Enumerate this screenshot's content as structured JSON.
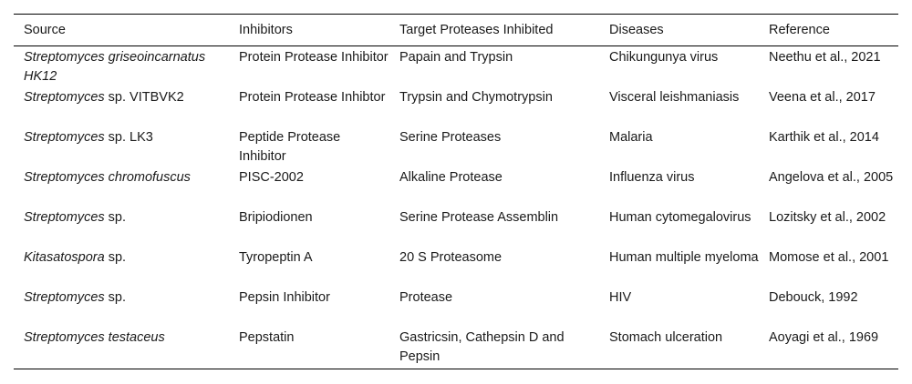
{
  "table": {
    "headers": [
      "Source",
      "Inhibitors",
      "Target Proteases Inhibited",
      "Diseases",
      "Reference"
    ],
    "rows": [
      {
        "source_italic": "Streptomyces griseoincarnatus HK12",
        "source_rest": "",
        "inhibitor": "Protein Protease Inhibitor",
        "target": "Papain and Trypsin",
        "disease": "Chikungunya virus",
        "reference": "Neethu et al., 2021"
      },
      {
        "source_italic": "Streptomyces",
        "source_rest": " sp. VITBVK2",
        "inhibitor": "Protein Protease Inhibtor",
        "target": "Trypsin and Chymotrypsin",
        "disease": "Visceral leishmaniasis",
        "reference": "Veena et al., 2017"
      },
      {
        "source_italic": "Streptomyces",
        "source_rest": " sp. LK3",
        "inhibitor": "Peptide Protease Inhibitor",
        "target": "Serine Proteases",
        "disease": "Malaria",
        "reference": "Karthik et al., 2014"
      },
      {
        "source_italic": "Streptomyces chromofuscus",
        "source_rest": "",
        "inhibitor": "PISC-2002",
        "target": "Alkaline Protease",
        "disease": "Influenza virus",
        "reference": "Angelova et al., 2005"
      },
      {
        "source_italic": "Streptomyces",
        "source_rest": " sp.",
        "inhibitor": "Bripiodionen",
        "target": "Serine Protease Assemblin",
        "disease": "Human cytomegalovirus",
        "reference": "Lozitsky et al., 2002"
      },
      {
        "source_italic": "Kitasatospora",
        "source_rest": " sp.",
        "inhibitor": "Tyropeptin A",
        "target": "20 S Proteasome",
        "disease": "Human multiple myeloma",
        "reference": "Momose et al., 2001"
      },
      {
        "source_italic": "Streptomyces",
        "source_rest": " sp.",
        "inhibitor": "Pepsin Inhibitor",
        "target": "Protease",
        "disease": "HIV",
        "reference": "Debouck, 1992"
      },
      {
        "source_italic": "Streptomyces testaceus",
        "source_rest": "",
        "inhibitor": "Pepstatin",
        "target": "Gastricsin, Cathepsin D and Pepsin",
        "disease": "Stomach ulceration",
        "reference": "Aoyagi et al., 1969"
      }
    ]
  }
}
